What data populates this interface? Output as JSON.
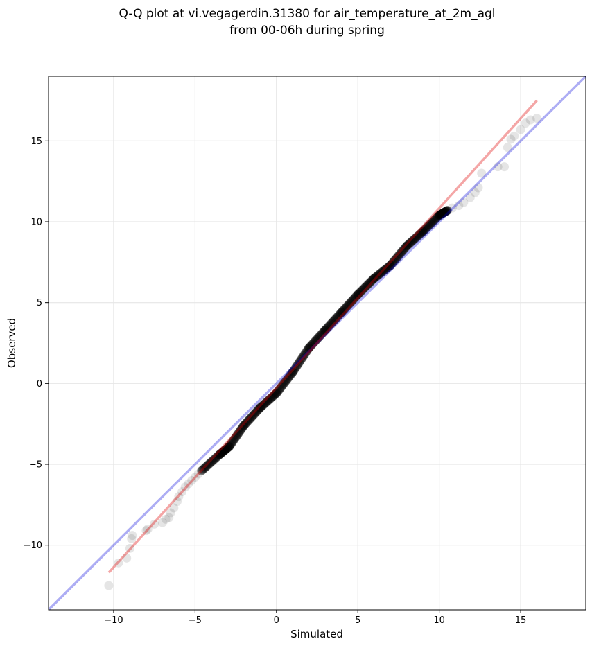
{
  "chart_data": {
    "type": "scatter",
    "title_line1": "Q-Q plot at vi.vegagerdin.31380 for air_temperature_at_2m_agl",
    "title_line2": "from 00-06h during spring",
    "xlabel": "Simulated",
    "ylabel": "Observed",
    "xlim": [
      -14,
      19
    ],
    "ylim": [
      -14,
      19
    ],
    "xticks": [
      -10,
      -5,
      0,
      5,
      10,
      15
    ],
    "yticks": [
      -10,
      -5,
      0,
      5,
      10,
      15
    ],
    "xtick_labels": [
      "−10",
      "−5",
      "0",
      "5",
      "10",
      "15"
    ],
    "ytick_labels": [
      "−10",
      "−5",
      "0",
      "5",
      "10",
      "15"
    ],
    "grid": true,
    "reference_line": {
      "color": "#0000dd",
      "points": [
        [
          -14,
          -14
        ],
        [
          19,
          19
        ]
      ]
    },
    "fit_line": {
      "color": "#e00000",
      "points": [
        [
          -10.3,
          -11.7
        ],
        [
          16.0,
          17.5
        ]
      ]
    },
    "point_color": "#000000",
    "sparse_points": [
      [
        -10.3,
        -12.5
      ],
      [
        -9.7,
        -11.1
      ],
      [
        -9.2,
        -10.8
      ],
      [
        -9.0,
        -10.2
      ],
      [
        -8.9,
        -9.6
      ],
      [
        -8.85,
        -9.4
      ],
      [
        -8.0,
        -9.1
      ],
      [
        -7.9,
        -9.0
      ],
      [
        -7.5,
        -8.7
      ],
      [
        -7.0,
        -8.6
      ],
      [
        -6.8,
        -8.4
      ],
      [
        -6.6,
        -8.3
      ],
      [
        -6.5,
        -8.0
      ],
      [
        -6.3,
        -7.7
      ],
      [
        -6.1,
        -7.3
      ],
      [
        -6.0,
        -7.0
      ],
      [
        -5.8,
        -6.7
      ],
      [
        -5.6,
        -6.4
      ],
      [
        -5.4,
        -6.2
      ],
      [
        -5.2,
        -6.0
      ],
      [
        -5.0,
        -5.8
      ],
      [
        -4.8,
        -5.6
      ],
      [
        -4.6,
        -5.4
      ],
      [
        10.5,
        10.7
      ],
      [
        10.8,
        10.85
      ],
      [
        11.2,
        11.0
      ],
      [
        11.5,
        11.2
      ],
      [
        11.9,
        11.5
      ],
      [
        12.2,
        11.8
      ],
      [
        12.4,
        12.1
      ],
      [
        12.6,
        13.0
      ],
      [
        13.6,
        13.4
      ],
      [
        14.0,
        13.4
      ],
      [
        14.2,
        14.6
      ],
      [
        14.4,
        15.1
      ],
      [
        14.6,
        15.3
      ],
      [
        15.0,
        15.7
      ],
      [
        15.3,
        16.1
      ],
      [
        15.6,
        16.3
      ],
      [
        16.0,
        16.4
      ]
    ],
    "dense_segments": [
      [
        [
          -4.6,
          -5.4
        ],
        [
          -3.5,
          -4.4
        ]
      ],
      [
        [
          -3.5,
          -4.4
        ],
        [
          -2.9,
          -3.9
        ]
      ],
      [
        [
          -2.9,
          -3.9
        ],
        [
          -2.0,
          -2.6
        ]
      ],
      [
        [
          -2.0,
          -2.6
        ],
        [
          -1.0,
          -1.5
        ]
      ],
      [
        [
          -1.0,
          -1.5
        ],
        [
          0.0,
          -0.6
        ]
      ],
      [
        [
          0.0,
          -0.6
        ],
        [
          1.0,
          0.7
        ]
      ],
      [
        [
          1.0,
          0.7
        ],
        [
          2.0,
          2.2
        ]
      ],
      [
        [
          2.0,
          2.2
        ],
        [
          3.0,
          3.3
        ]
      ],
      [
        [
          3.0,
          3.3
        ],
        [
          4.0,
          4.4
        ]
      ],
      [
        [
          4.0,
          4.4
        ],
        [
          5.0,
          5.5
        ]
      ],
      [
        [
          5.0,
          5.5
        ],
        [
          6.0,
          6.5
        ]
      ],
      [
        [
          6.0,
          6.5
        ],
        [
          7.0,
          7.3
        ]
      ],
      [
        [
          7.0,
          7.3
        ],
        [
          8.0,
          8.5
        ]
      ],
      [
        [
          8.0,
          8.5
        ],
        [
          9.0,
          9.4
        ]
      ],
      [
        [
          9.0,
          9.4
        ],
        [
          10.0,
          10.4
        ]
      ],
      [
        [
          10.0,
          10.4
        ],
        [
          10.5,
          10.7
        ]
      ]
    ]
  }
}
